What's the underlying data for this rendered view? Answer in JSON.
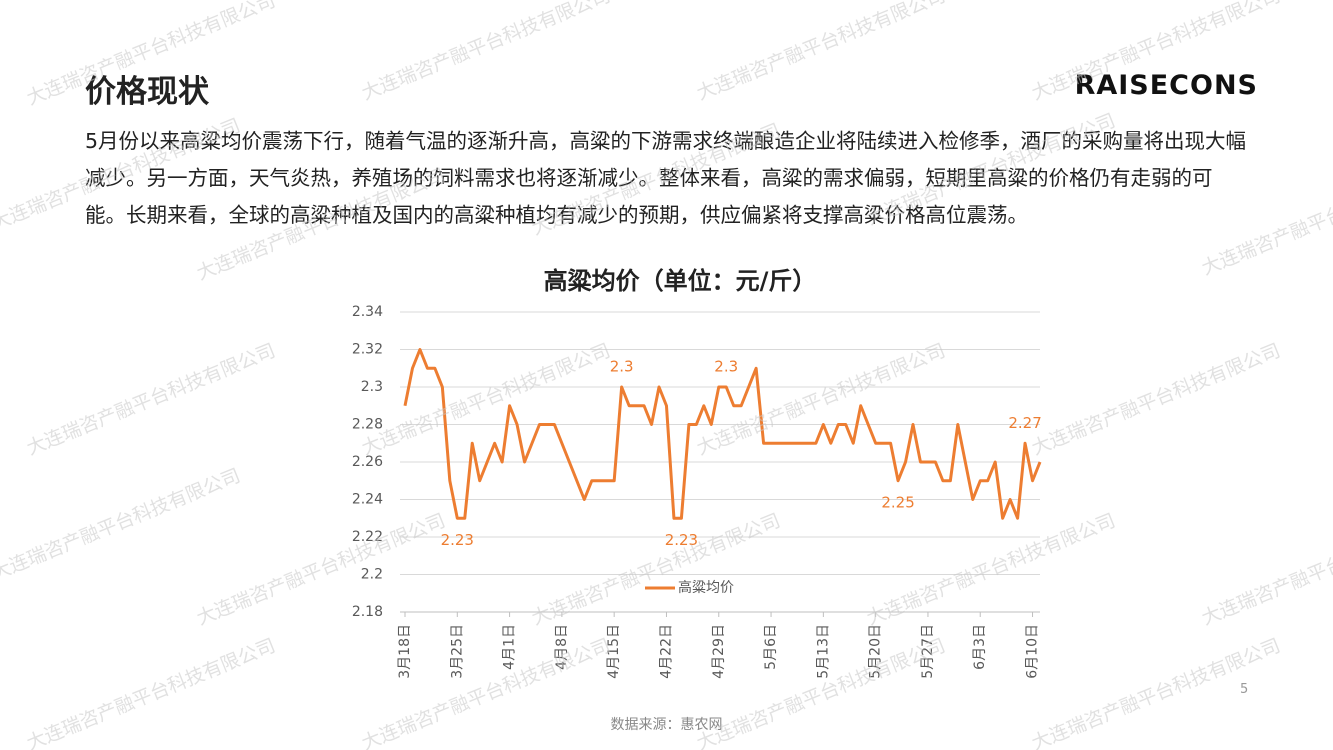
{
  "header": {
    "title": "价格现状",
    "logo": "RAISECONS"
  },
  "paragraph": "5月份以来高粱均价震荡下行，随着气温的逐渐升高，高粱的下游需求终端酿造企业将陆续进入检修季，酒厂的采购量将出现大幅减少。另一方面，天气炎热，养殖场的饲料需求也将逐渐减少。整体来看，高粱的需求偏弱，短期里高粱的价格仍有走弱的可能。长期来看，全球的高粱种植及国内的高粱种植均有减少的预期，供应偏紧将支撑高粱价格高位震荡。",
  "chart_data": {
    "type": "line",
    "title": "高粱均价（单位：元/斤）",
    "categories": [
      "3月18日",
      null,
      null,
      null,
      null,
      null,
      null,
      "3月25日",
      null,
      null,
      null,
      null,
      null,
      null,
      "4月1日",
      null,
      null,
      null,
      null,
      null,
      null,
      "4月8日",
      null,
      null,
      null,
      null,
      null,
      null,
      "4月15日",
      null,
      null,
      null,
      null,
      null,
      null,
      "4月22日",
      null,
      null,
      null,
      null,
      null,
      null,
      "4月29日",
      null,
      null,
      null,
      null,
      null,
      null,
      "5月6日",
      null,
      null,
      null,
      null,
      null,
      null,
      "5月13日",
      null,
      null,
      null,
      null,
      null,
      null,
      "5月20日",
      null,
      null,
      null,
      null,
      null,
      null,
      "5月27日",
      null,
      null,
      null,
      null,
      null,
      null,
      "6月3日",
      null,
      null,
      null,
      null,
      null,
      null,
      "6月10日",
      null
    ],
    "series": [
      {
        "name": "高粱均价",
        "color": "#ed7d31",
        "values": [
          2.29,
          2.31,
          2.32,
          2.31,
          2.31,
          2.3,
          2.25,
          2.23,
          2.23,
          2.27,
          2.25,
          2.26,
          2.27,
          2.26,
          2.29,
          2.28,
          2.26,
          2.27,
          2.28,
          2.28,
          2.28,
          2.27,
          2.26,
          2.25,
          2.24,
          2.25,
          2.25,
          2.25,
          2.25,
          2.3,
          2.29,
          2.29,
          2.29,
          2.28,
          2.3,
          2.29,
          2.23,
          2.23,
          2.28,
          2.28,
          2.29,
          2.28,
          2.3,
          2.3,
          2.29,
          2.29,
          2.3,
          2.31,
          2.27,
          2.27,
          2.27,
          2.27,
          2.27,
          2.27,
          2.27,
          2.27,
          2.28,
          2.27,
          2.28,
          2.28,
          2.27,
          2.29,
          2.28,
          2.27,
          2.27,
          2.27,
          2.25,
          2.26,
          2.28,
          2.26,
          2.26,
          2.26,
          2.25,
          2.25,
          2.28,
          2.26,
          2.24,
          2.25,
          2.25,
          2.26,
          2.23,
          2.24,
          2.23,
          2.27,
          2.25,
          2.26
        ],
        "value_labels": [
          null,
          null,
          null,
          null,
          null,
          null,
          null,
          "2.23",
          null,
          null,
          null,
          null,
          null,
          null,
          null,
          null,
          null,
          null,
          null,
          null,
          null,
          null,
          null,
          null,
          null,
          null,
          null,
          null,
          null,
          "2.3",
          null,
          null,
          null,
          null,
          null,
          null,
          null,
          "2.23",
          null,
          null,
          null,
          null,
          null,
          "2.3",
          null,
          null,
          null,
          null,
          null,
          null,
          null,
          null,
          null,
          null,
          null,
          null,
          null,
          null,
          null,
          null,
          null,
          null,
          null,
          null,
          null,
          null,
          "2.25",
          null,
          null,
          null,
          null,
          null,
          null,
          null,
          null,
          null,
          null,
          null,
          null,
          null,
          null,
          null,
          null,
          "2.27",
          null,
          null
        ]
      }
    ],
    "ylim": [
      2.18,
      2.34
    ],
    "yticks": [
      2.18,
      2.2,
      2.22,
      2.24,
      2.26,
      2.28,
      2.3,
      2.32,
      2.34
    ],
    "grid": true,
    "legend": "bottom"
  },
  "source": "数据来源：惠农网",
  "page_number": "5",
  "watermark": "大连瑞咨产融平台科技有限公司"
}
